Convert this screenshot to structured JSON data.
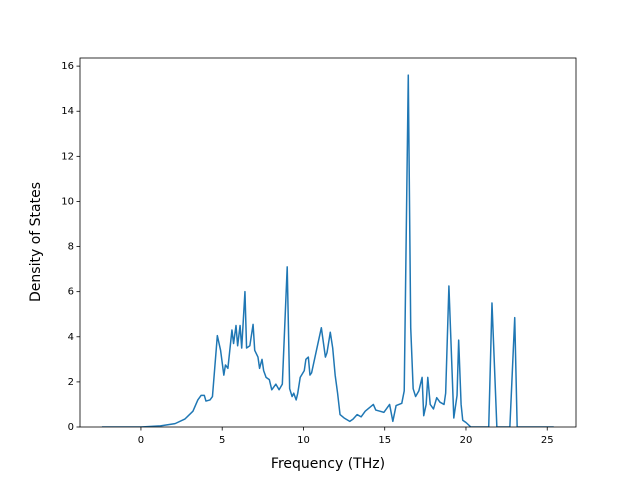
{
  "chart_data": {
    "type": "line",
    "xlabel": "Frequency (THz)",
    "ylabel": "Density of States",
    "xlim": [
      -3.75,
      26.77
    ],
    "ylim": [
      0,
      16.36
    ],
    "xticks": [
      0,
      5,
      10,
      15,
      20,
      25
    ],
    "yticks": [
      0,
      2,
      4,
      6,
      8,
      10,
      12,
      14,
      16
    ],
    "x": [
      -2.4,
      0,
      1.2,
      2.1,
      2.7,
      3.2,
      3.5,
      3.7,
      3.9,
      4.0,
      4.25,
      4.4,
      4.7,
      4.9,
      5.1,
      5.2,
      5.35,
      5.6,
      5.7,
      5.85,
      5.95,
      6.1,
      6.2,
      6.4,
      6.5,
      6.7,
      6.9,
      7.0,
      7.2,
      7.3,
      7.45,
      7.55,
      7.7,
      7.9,
      8.05,
      8.3,
      8.5,
      8.7,
      9.0,
      9.15,
      9.3,
      9.4,
      9.55,
      9.65,
      9.8,
      10.05,
      10.15,
      10.3,
      10.4,
      10.5,
      10.8,
      11.1,
      11.35,
      11.45,
      11.65,
      11.8,
      11.95,
      12.1,
      12.25,
      12.5,
      12.85,
      13.05,
      13.3,
      13.55,
      13.8,
      14.05,
      14.3,
      14.45,
      14.7,
      14.95,
      15.3,
      15.5,
      15.7,
      16.05,
      16.2,
      16.45,
      16.6,
      16.75,
      16.9,
      17.1,
      17.3,
      17.4,
      17.55,
      17.65,
      17.8,
      18.0,
      18.2,
      18.4,
      18.65,
      18.75,
      18.95,
      19.25,
      19.45,
      19.55,
      19.7,
      19.8,
      20.0,
      20.3,
      21.4,
      21.6,
      21.9,
      22.7,
      23.0,
      23.15,
      25.4
    ],
    "series": [
      {
        "color": "#1f77b4",
        "values": [
          0,
          0,
          0.05,
          0.15,
          0.35,
          0.7,
          1.2,
          1.4,
          1.4,
          1.15,
          1.2,
          1.35,
          4.05,
          3.4,
          2.3,
          2.75,
          2.6,
          4.3,
          3.7,
          4.5,
          3.6,
          4.5,
          3.5,
          6.0,
          3.5,
          3.6,
          4.55,
          3.4,
          3.1,
          2.6,
          3.0,
          2.5,
          2.2,
          2.1,
          1.65,
          1.9,
          1.65,
          1.9,
          7.1,
          1.7,
          1.35,
          1.5,
          1.2,
          1.5,
          2.2,
          2.5,
          3.0,
          3.1,
          2.3,
          2.4,
          3.4,
          4.4,
          3.1,
          3.3,
          4.2,
          3.5,
          2.3,
          1.5,
          0.55,
          0.4,
          0.25,
          0.35,
          0.55,
          0.45,
          0.7,
          0.85,
          1.0,
          0.75,
          0.7,
          0.65,
          1.0,
          0.25,
          0.95,
          1.05,
          1.6,
          15.6,
          4.4,
          1.7,
          1.35,
          1.6,
          2.2,
          0.5,
          1.0,
          2.2,
          1.0,
          0.8,
          1.3,
          1.1,
          1.0,
          1.5,
          6.25,
          0.4,
          1.4,
          3.85,
          1.0,
          0.3,
          0.2,
          0,
          0,
          5.5,
          0,
          0,
          4.85,
          0,
          0
        ]
      }
    ]
  }
}
